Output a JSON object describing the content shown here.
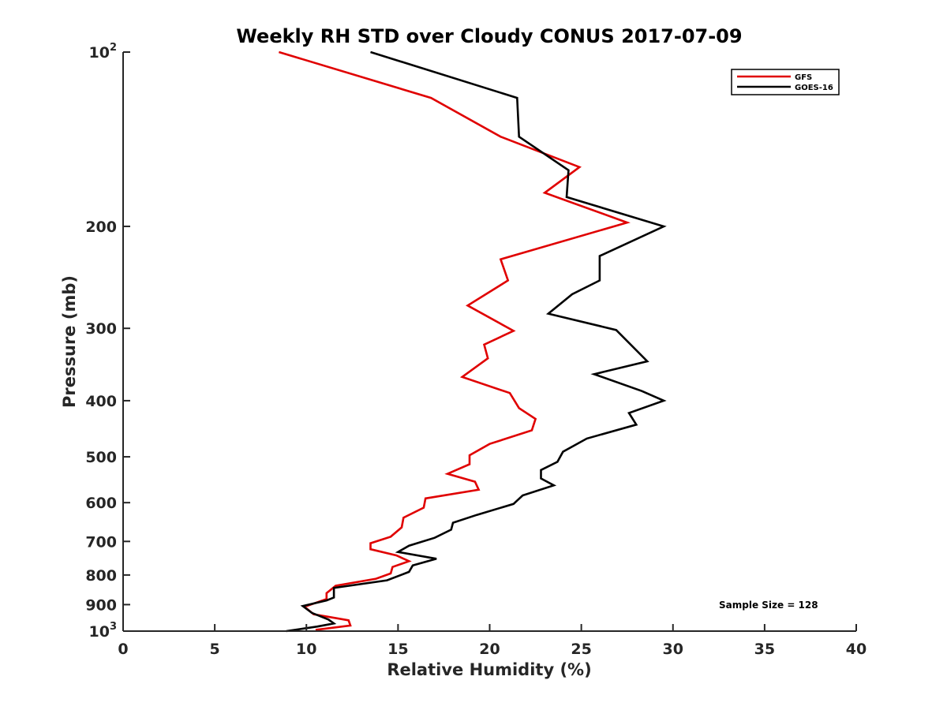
{
  "chart_data": {
    "type": "line",
    "title": "Weekly RH STD over Cloudy CONUS 2017-07-09",
    "xlabel": "Relative Humidity (%)",
    "ylabel": "Pressure (mb)",
    "xlim": [
      0,
      40
    ],
    "ylim": [
      100,
      1000
    ],
    "yscale": "log",
    "y_reversed": true,
    "grid": false,
    "legend_position": "top-right",
    "x_ticks": [
      "0",
      "5",
      "10",
      "15",
      "20",
      "25",
      "30",
      "35",
      "40"
    ],
    "y_ticks": [
      {
        "value": 100,
        "base": "10",
        "exp": "2"
      },
      {
        "value": 200,
        "label": "200"
      },
      {
        "value": 300,
        "label": "300"
      },
      {
        "value": 400,
        "label": "400"
      },
      {
        "value": 500,
        "label": "500"
      },
      {
        "value": 600,
        "label": "600"
      },
      {
        "value": 700,
        "label": "700"
      },
      {
        "value": 800,
        "label": "800"
      },
      {
        "value": 900,
        "label": "900"
      },
      {
        "value": 1000,
        "base": "10",
        "exp": "3"
      }
    ],
    "annotation": "Sample Size = 128",
    "series": [
      {
        "name": "GFS",
        "color": "#e00000",
        "points": [
          [
            8.5,
            100
          ],
          [
            16.8,
            120
          ],
          [
            20.6,
            140
          ],
          [
            24.9,
            158
          ],
          [
            23.0,
            175
          ],
          [
            27.5,
            197
          ],
          [
            20.6,
            228
          ],
          [
            21.0,
            248
          ],
          [
            18.8,
            274
          ],
          [
            21.3,
            303
          ],
          [
            19.7,
            320
          ],
          [
            19.9,
            338
          ],
          [
            18.5,
            364
          ],
          [
            21.1,
            388
          ],
          [
            21.6,
            412
          ],
          [
            22.5,
            430
          ],
          [
            22.3,
            450
          ],
          [
            20.0,
            475
          ],
          [
            18.9,
            497
          ],
          [
            18.9,
            515
          ],
          [
            17.7,
            535
          ],
          [
            19.2,
            552
          ],
          [
            19.4,
            570
          ],
          [
            16.5,
            590
          ],
          [
            16.4,
            612
          ],
          [
            15.3,
            637
          ],
          [
            15.2,
            662
          ],
          [
            14.6,
            687
          ],
          [
            13.5,
            705
          ],
          [
            13.5,
            722
          ],
          [
            14.9,
            740
          ],
          [
            15.6,
            757
          ],
          [
            14.7,
            775
          ],
          [
            14.6,
            795
          ],
          [
            13.8,
            812
          ],
          [
            11.6,
            835
          ],
          [
            11.1,
            860
          ],
          [
            11.1,
            880
          ],
          [
            9.9,
            908
          ],
          [
            10.4,
            935
          ],
          [
            12.3,
            958
          ],
          [
            12.4,
            978
          ],
          [
            10.5,
            995
          ]
        ]
      },
      {
        "name": "GOES-16",
        "color": "#000000",
        "points": [
          [
            13.5,
            100
          ],
          [
            21.5,
            120
          ],
          [
            21.6,
            140
          ],
          [
            24.3,
            160
          ],
          [
            24.2,
            178
          ],
          [
            29.5,
            200
          ],
          [
            26.0,
            225
          ],
          [
            26.0,
            248
          ],
          [
            24.5,
            262
          ],
          [
            23.2,
            283
          ],
          [
            26.9,
            302
          ],
          [
            28.6,
            342
          ],
          [
            25.7,
            360
          ],
          [
            28.3,
            385
          ],
          [
            29.5,
            400
          ],
          [
            27.6,
            420
          ],
          [
            28.0,
            440
          ],
          [
            25.3,
            465
          ],
          [
            24.0,
            490
          ],
          [
            23.7,
            510
          ],
          [
            22.8,
            527
          ],
          [
            22.8,
            545
          ],
          [
            23.5,
            560
          ],
          [
            21.8,
            583
          ],
          [
            21.3,
            603
          ],
          [
            19.3,
            630
          ],
          [
            18.0,
            650
          ],
          [
            17.9,
            668
          ],
          [
            17.0,
            690
          ],
          [
            15.6,
            712
          ],
          [
            15.0,
            730
          ],
          [
            17.1,
            750
          ],
          [
            15.8,
            770
          ],
          [
            15.6,
            790
          ],
          [
            14.4,
            817
          ],
          [
            11.5,
            842
          ],
          [
            11.5,
            875
          ],
          [
            11.1,
            885
          ],
          [
            9.8,
            905
          ],
          [
            10.3,
            930
          ],
          [
            11.2,
            955
          ],
          [
            11.5,
            970
          ],
          [
            10.6,
            982
          ],
          [
            8.9,
            1000
          ]
        ]
      }
    ]
  }
}
